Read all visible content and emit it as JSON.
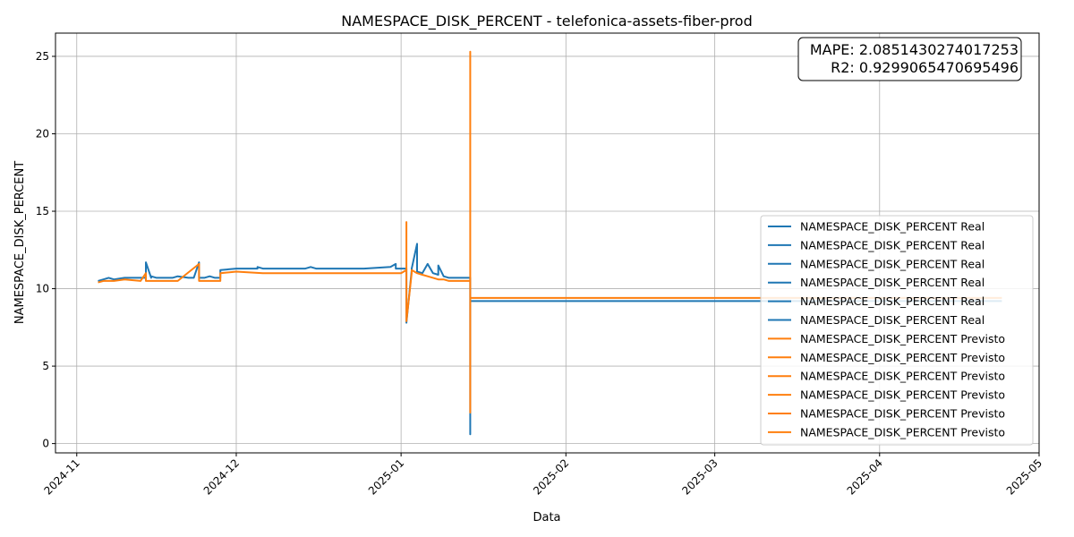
{
  "chart_data": {
    "type": "line",
    "title": "NAMESPACE_DISK_PERCENT - telefonica-assets-fiber-prod",
    "xlabel": "Data",
    "ylabel": "NAMESPACE_DISK_PERCENT",
    "xlim": [
      "2024-10-28",
      "2025-05-01"
    ],
    "ylim": [
      -0.6,
      26.5
    ],
    "x_ticks": [
      "2024-11",
      "2024-12",
      "2025-01",
      "2025-02",
      "2025-03",
      "2025-04",
      "2025-05"
    ],
    "x_tick_dates": [
      "2024-11-01",
      "2024-12-01",
      "2025-01-01",
      "2025-02-01",
      "2025-03-01",
      "2025-04-01",
      "2025-05-01"
    ],
    "y_ticks": [
      0,
      5,
      10,
      15,
      20,
      25
    ],
    "grid": true,
    "legend_position": "lower-right",
    "annotation": {
      "mape_label": "MAPE: 2.0851430274017253",
      "r2_label": "R2: 0.9299065470695496"
    },
    "colors": {
      "real": "#1f77b4",
      "previsto": "#ff7f0e"
    },
    "legend": [
      "NAMESPACE_DISK_PERCENT Real",
      "NAMESPACE_DISK_PERCENT Real",
      "NAMESPACE_DISK_PERCENT Real",
      "NAMESPACE_DISK_PERCENT Real",
      "NAMESPACE_DISK_PERCENT Real",
      "NAMESPACE_DISK_PERCENT Real",
      "NAMESPACE_DISK_PERCENT Previsto",
      "NAMESPACE_DISK_PERCENT Previsto",
      "NAMESPACE_DISK_PERCENT Previsto",
      "NAMESPACE_DISK_PERCENT Previsto",
      "NAMESPACE_DISK_PERCENT Previsto",
      "NAMESPACE_DISK_PERCENT Previsto"
    ],
    "series": [
      {
        "role": "real",
        "x": [
          "2024-11-05",
          "2024-11-06",
          "2024-11-07",
          "2024-11-08",
          "2024-11-10",
          "2024-11-12",
          "2024-11-14",
          "2024-11-14",
          "2024-11-15",
          "2024-11-15",
          "2024-11-16",
          "2024-11-19",
          "2024-11-20",
          "2024-11-22",
          "2024-11-23",
          "2024-11-24",
          "2024-11-24",
          "2024-11-25",
          "2024-11-26",
          "2024-11-27",
          "2024-11-28",
          "2024-11-28",
          "2024-12-01",
          "2024-12-05",
          "2024-12-05",
          "2024-12-06",
          "2024-12-09",
          "2024-12-10",
          "2024-12-14",
          "2024-12-15",
          "2024-12-16",
          "2024-12-17",
          "2024-12-18",
          "2024-12-20",
          "2024-12-25",
          "2024-12-30",
          "2024-12-31",
          "2024-12-31",
          "2025-01-02",
          "2025-01-02",
          "2025-01-03",
          "2025-01-03",
          "2025-01-04",
          "2025-01-04",
          "2025-01-05",
          "2025-01-06",
          "2025-01-07",
          "2025-01-08",
          "2025-01-08",
          "2025-01-09",
          "2025-01-10",
          "2025-01-11",
          "2025-01-14",
          "2025-01-14",
          "2025-01-14",
          "2025-01-14",
          "2025-01-15",
          "2025-01-20",
          "2025-02-01",
          "2025-03-01",
          "2025-04-01",
          "2025-04-24"
        ],
        "y": [
          10.5,
          10.6,
          10.7,
          10.6,
          10.7,
          10.7,
          10.7,
          11.7,
          10.7,
          10.8,
          10.7,
          10.7,
          10.8,
          10.7,
          10.7,
          11.7,
          10.7,
          10.7,
          10.8,
          10.7,
          10.7,
          11.2,
          11.3,
          11.3,
          11.4,
          11.3,
          11.3,
          11.3,
          11.3,
          11.4,
          11.3,
          11.3,
          11.3,
          11.3,
          11.3,
          11.4,
          11.6,
          11.3,
          11.3,
          7.8,
          11.2,
          11.3,
          12.9,
          11.1,
          11.0,
          11.6,
          11.0,
          10.9,
          11.5,
          10.8,
          10.7,
          10.7,
          10.7,
          0.6,
          2.2,
          9.2,
          9.2,
          9.2,
          9.2,
          9.2,
          9.2,
          9.2
        ]
      },
      {
        "role": "previsto",
        "x": [
          "2024-11-05",
          "2024-11-06",
          "2024-11-08",
          "2024-11-10",
          "2024-11-13",
          "2024-11-14",
          "2024-11-14",
          "2024-11-15",
          "2024-11-20",
          "2024-11-24",
          "2024-11-24",
          "2024-11-25",
          "2024-11-28",
          "2024-11-28",
          "2024-12-01",
          "2024-12-06",
          "2024-12-10",
          "2024-12-15",
          "2024-12-20",
          "2024-12-25",
          "2024-12-30",
          "2025-01-01",
          "2025-01-02",
          "2025-01-02",
          "2025-01-02",
          "2025-01-03",
          "2025-01-03",
          "2025-01-04",
          "2025-01-05",
          "2025-01-06",
          "2025-01-07",
          "2025-01-08",
          "2025-01-09",
          "2025-01-10",
          "2025-01-14",
          "2025-01-14",
          "2025-01-14",
          "2025-01-14",
          "2025-01-14",
          "2025-01-15",
          "2025-01-20",
          "2025-02-01",
          "2025-03-01",
          "2025-04-01",
          "2025-04-24"
        ],
        "y": [
          10.4,
          10.5,
          10.5,
          10.6,
          10.5,
          11.0,
          10.5,
          10.5,
          10.5,
          11.6,
          10.5,
          10.5,
          10.5,
          11.0,
          11.1,
          11.0,
          11.0,
          11.0,
          11.0,
          11.0,
          11.0,
          11.0,
          11.2,
          14.3,
          7.9,
          11.0,
          11.2,
          11.0,
          10.9,
          10.8,
          10.7,
          10.6,
          10.6,
          10.5,
          10.5,
          25.3,
          2.0,
          9.4,
          9.4,
          9.4,
          9.4,
          9.4,
          9.4,
          9.4,
          9.4
        ]
      }
    ]
  }
}
